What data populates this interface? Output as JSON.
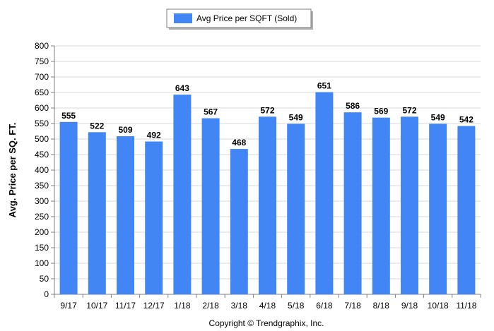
{
  "chart_data": {
    "type": "bar",
    "categories": [
      "9/17",
      "10/17",
      "11/17",
      "12/17",
      "1/18",
      "2/18",
      "3/18",
      "4/18",
      "5/18",
      "6/18",
      "7/18",
      "8/18",
      "9/18",
      "10/18",
      "11/18"
    ],
    "series": [
      {
        "name": "Avg Price per SQFT (Sold)",
        "values": [
          555,
          522,
          509,
          492,
          643,
          567,
          468,
          572,
          549,
          651,
          586,
          569,
          572,
          549,
          542
        ],
        "color": "#4285F4"
      }
    ],
    "title": "",
    "xlabel": "",
    "ylabel": "Avg. Price per SQ. FT.",
    "ylim": [
      0,
      800
    ],
    "yticks": [
      0,
      50,
      100,
      150,
      200,
      250,
      300,
      350,
      400,
      450,
      500,
      550,
      600,
      650,
      700,
      750,
      800
    ],
    "grid": true,
    "legend_position": "top-center",
    "data_labels": true
  },
  "footer": {
    "copyright": "Copyright © Trendgraphix, Inc."
  },
  "colors": {
    "bar": "#4285F4",
    "grid": "#d9d9d9",
    "axis": "#808080"
  }
}
